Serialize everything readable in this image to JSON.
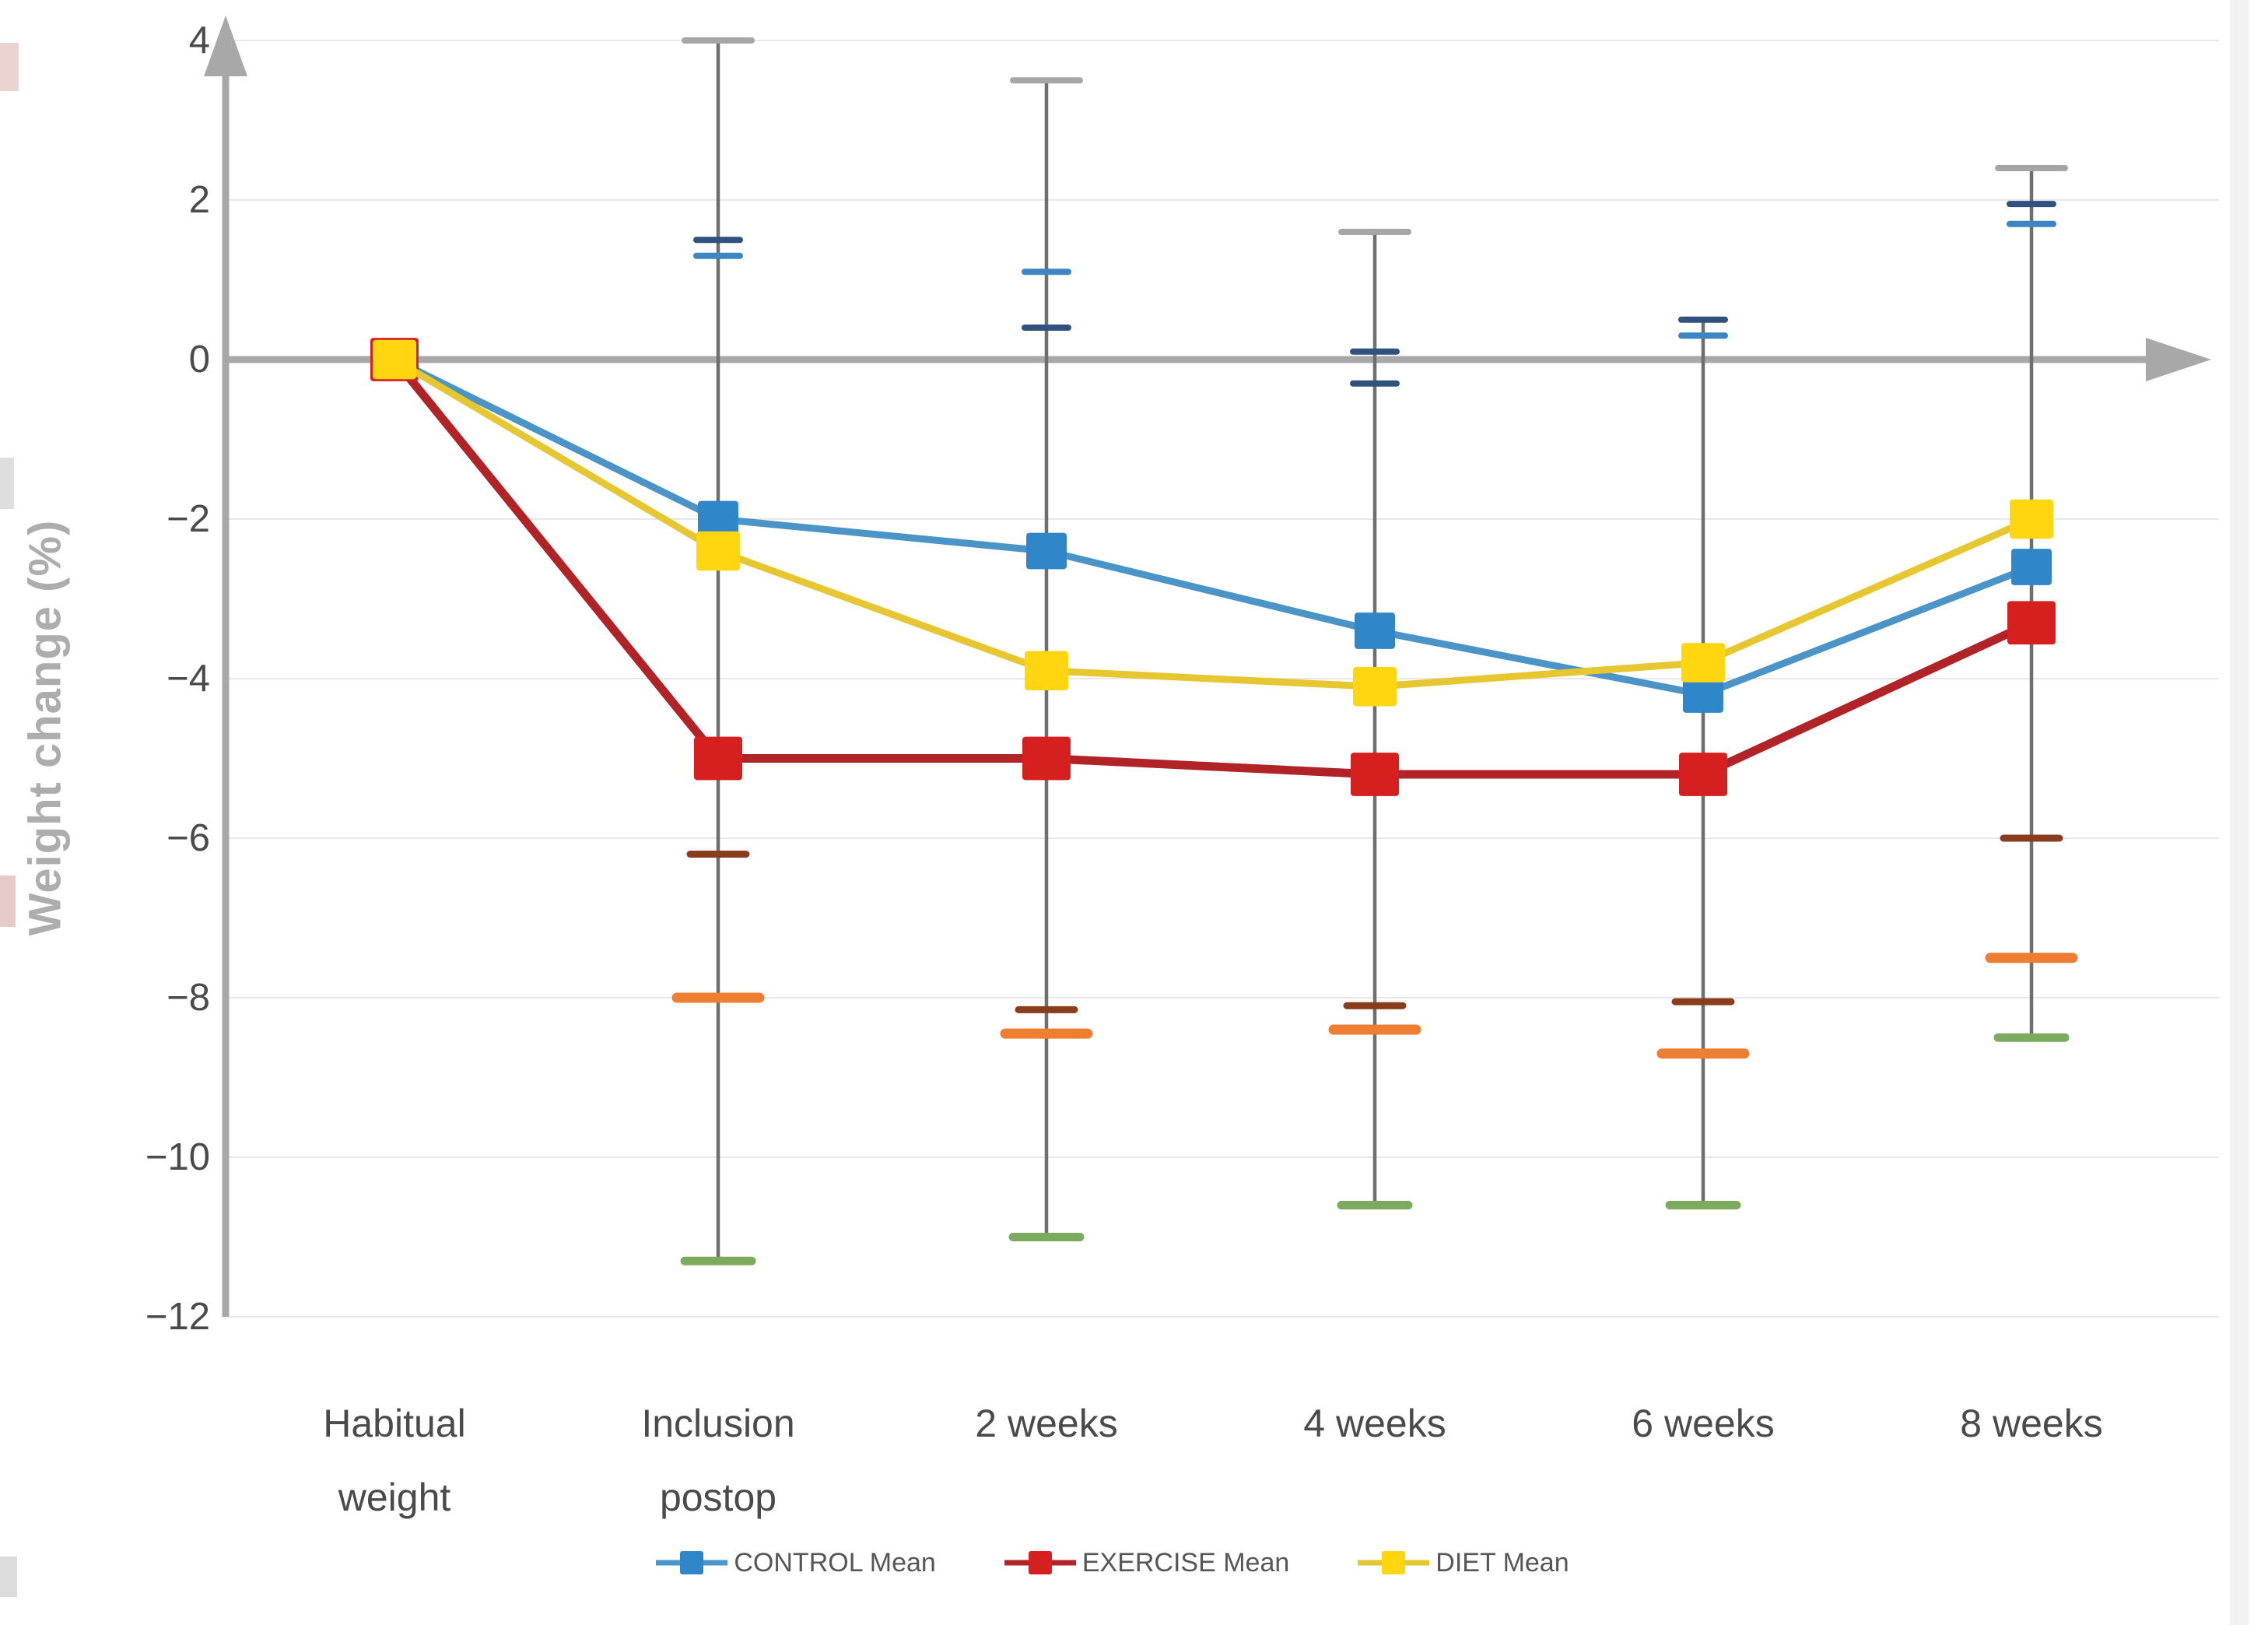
{
  "chart_data": {
    "type": "line",
    "title": "",
    "ylabel": "Weight change (%)",
    "grid": true,
    "legend_position": "bottom",
    "categories": [
      "Habitual\nweight",
      "Inclusion\npostop",
      "2 weeks",
      "4 weeks",
      "6 weeks",
      "8 weeks"
    ],
    "y_axis": {
      "min": -12,
      "max": 4,
      "ticks": [
        {
          "value": 4,
          "label": "4"
        },
        {
          "value": 2,
          "label": "2"
        },
        {
          "value": 0,
          "label": "0"
        },
        {
          "value": -2,
          "label": "−2"
        },
        {
          "value": -4,
          "label": "−4"
        },
        {
          "value": -6,
          "label": "−6"
        },
        {
          "value": -8,
          "label": "−8"
        },
        {
          "value": -10,
          "label": "−10"
        },
        {
          "value": -12,
          "label": "−12"
        }
      ]
    },
    "series": [
      {
        "name": "CONTROL Mean",
        "values": [
          0,
          -2.0,
          -2.4,
          -3.4,
          -4.2,
          -2.6
        ],
        "line_color": "#4a94c8",
        "marker_color": "#2f86c9",
        "marker_size": 52,
        "line_width": 9
      },
      {
        "name": "EXERCISE Mean",
        "values": [
          0,
          -5.0,
          -5.0,
          -5.2,
          -5.2,
          -3.3
        ],
        "line_color": "#b02427",
        "marker_color": "#d61f1f",
        "marker_size": 62,
        "line_width": 11
      },
      {
        "name": "DIET Mean",
        "values": [
          0,
          -2.4,
          -3.9,
          -4.1,
          -3.8,
          -2.0
        ],
        "line_color": "#e6c631",
        "marker_color": "#ffd60f",
        "marker_size": 56,
        "line_width": 9
      }
    ],
    "error_bars": [
      {
        "category_index": 1,
        "top": 4.0,
        "bottom": -11.3,
        "caps": [
          {
            "value": 4.0,
            "color": "gray"
          },
          {
            "value": 1.5,
            "color": "navy"
          },
          {
            "value": 1.3,
            "color": "blue"
          },
          {
            "value": -6.2,
            "color": "darkred"
          },
          {
            "value": -8.0,
            "color": "orange"
          },
          {
            "value": -11.3,
            "color": "green"
          }
        ]
      },
      {
        "category_index": 2,
        "top": 3.5,
        "bottom": -11.0,
        "caps": [
          {
            "value": 3.5,
            "color": "gray"
          },
          {
            "value": 1.1,
            "color": "blue"
          },
          {
            "value": 0.4,
            "color": "navy"
          },
          {
            "value": -8.15,
            "color": "darkred"
          },
          {
            "value": -8.45,
            "color": "orange"
          },
          {
            "value": -11.0,
            "color": "green"
          }
        ]
      },
      {
        "category_index": 3,
        "top": 1.6,
        "bottom": -10.6,
        "caps": [
          {
            "value": 1.6,
            "color": "gray"
          },
          {
            "value": 0.1,
            "color": "navy"
          },
          {
            "value": -0.3,
            "color": "navy"
          },
          {
            "value": -8.1,
            "color": "darkred"
          },
          {
            "value": -8.4,
            "color": "orange"
          },
          {
            "value": -10.6,
            "color": "green"
          }
        ]
      },
      {
        "category_index": 4,
        "top": 0.5,
        "bottom": -10.6,
        "caps": [
          {
            "value": 0.5,
            "color": "navy"
          },
          {
            "value": 0.3,
            "color": "blue"
          },
          {
            "value": -8.05,
            "color": "darkred"
          },
          {
            "value": -8.7,
            "color": "orange"
          },
          {
            "value": -10.6,
            "color": "green"
          }
        ]
      },
      {
        "category_index": 5,
        "top": 2.4,
        "bottom": -8.5,
        "caps": [
          {
            "value": 2.4,
            "color": "gray"
          },
          {
            "value": 1.95,
            "color": "navy"
          },
          {
            "value": 1.7,
            "color": "blue"
          },
          {
            "value": -6.0,
            "color": "darkred"
          },
          {
            "value": -7.5,
            "color": "orange"
          },
          {
            "value": -8.5,
            "color": "green"
          }
        ]
      }
    ],
    "cap_colors": {
      "gray": "#a6a6a6",
      "navy": "#31517f",
      "blue": "#3e86c3",
      "darkred": "#8a3d1c",
      "orange": "#ee7e31",
      "green": "#7cab5f"
    },
    "axis_color": "#a8a8a8",
    "gridline_color": "#e8e8e8",
    "whisker_color": "#6e6e6e",
    "legend": [
      "CONTROL Mean",
      "EXERCISE Mean",
      "DIET Mean"
    ]
  }
}
